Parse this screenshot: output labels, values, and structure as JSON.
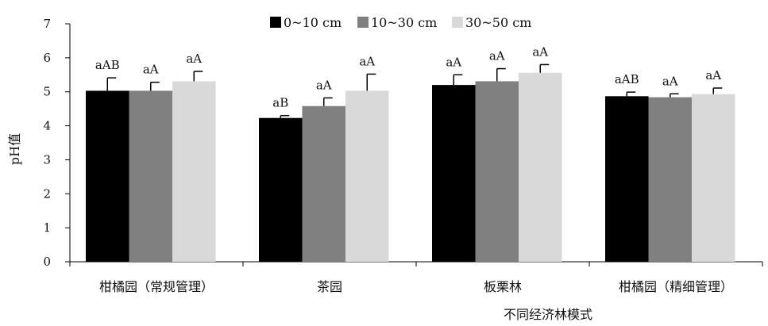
{
  "chart_data": {
    "type": "bar",
    "title": "",
    "xlabel": "不同经济林模式",
    "ylabel": "pH值",
    "ylim": [
      0,
      7
    ],
    "yticks": [
      0,
      1,
      2,
      3,
      4,
      5,
      6,
      7
    ],
    "grid": false,
    "legend_position": "top",
    "categories": [
      "柑橘园（常规管理）",
      "茶园",
      "板栗林",
      "柑橘园（精细管理）"
    ],
    "series": [
      {
        "name": "0~10 cm",
        "color": "#000000",
        "values": [
          5.03,
          4.23,
          5.2,
          4.87
        ],
        "errors": [
          0.38,
          0.07,
          0.3,
          0.12
        ],
        "labels": [
          "aAB",
          "aB",
          "aA",
          "aAB"
        ]
      },
      {
        "name": "10~30 cm",
        "color": "#808080",
        "values": [
          5.03,
          4.58,
          5.31,
          4.84
        ],
        "errors": [
          0.25,
          0.24,
          0.37,
          0.1
        ],
        "labels": [
          "aA",
          "aA",
          "aA",
          "aA"
        ]
      },
      {
        "name": "30~50 cm",
        "color": "#d9d9d9",
        "values": [
          5.31,
          5.03,
          5.56,
          4.93
        ],
        "errors": [
          0.29,
          0.49,
          0.24,
          0.18
        ],
        "labels": [
          "aA",
          "aA",
          "aA",
          "aA"
        ]
      }
    ]
  }
}
